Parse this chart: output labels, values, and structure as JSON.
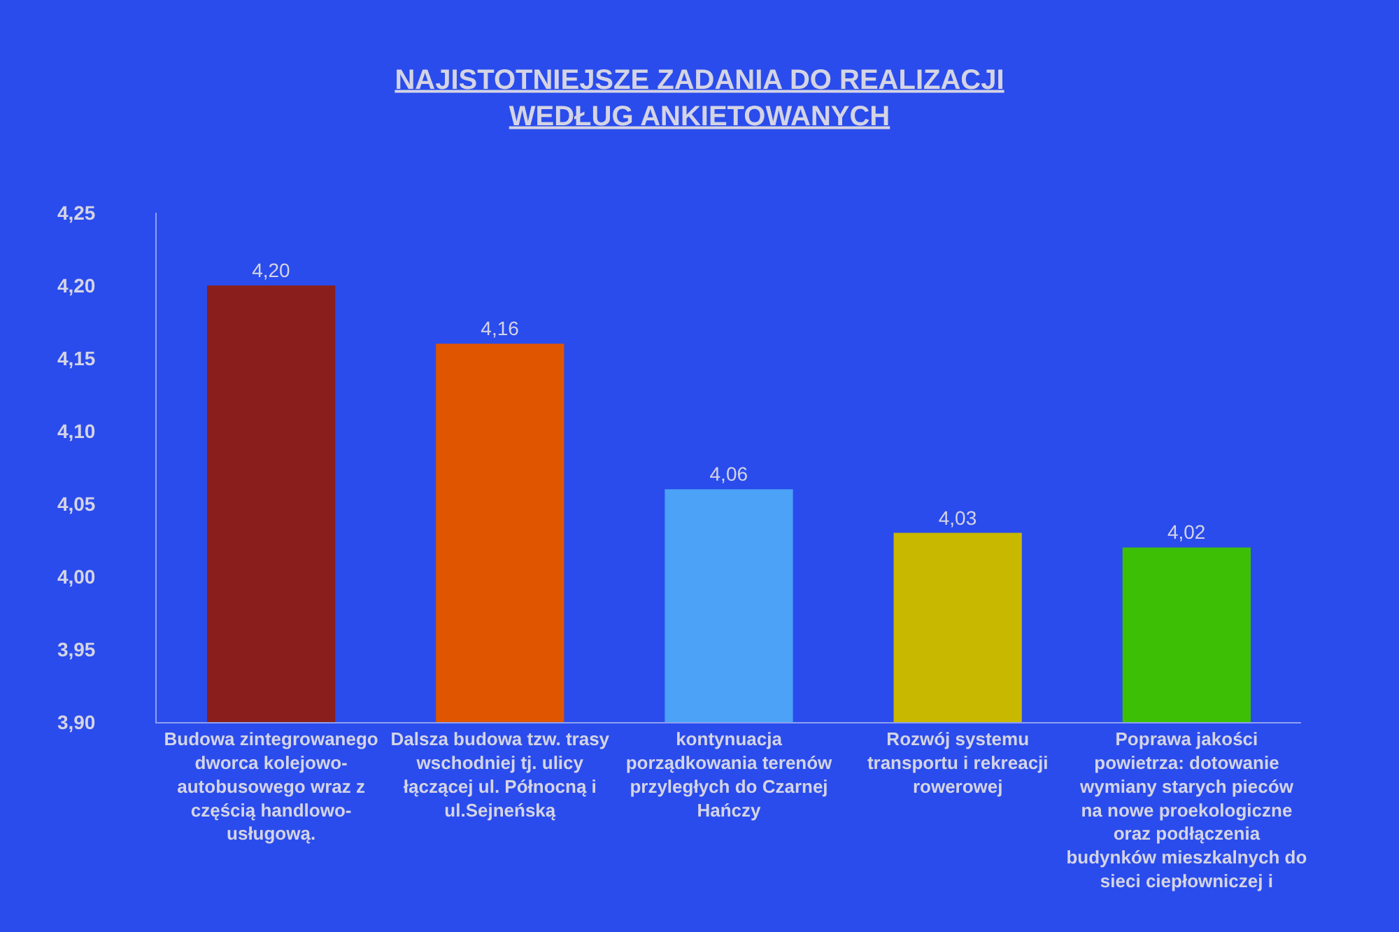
{
  "chart_data": {
    "type": "bar",
    "title": "NAJISTOTNIEJSZE ZADANIA DO REALIZACJI WEDŁUG ANKIETOWANYCH",
    "categories": [
      "Budowa zintegrowanego dworca kolejowo-autobusowego wraz z częścią handlowo-usługową.",
      "Dalsza budowa tzw. trasy wschodniej tj. ulicy łączącej ul. Północną i ul.Sejneńską",
      "kontynuacja porządkowania terenów przyległych do Czarnej Hańczy",
      "Rozwój systemu transportu i rekreacji rowerowej",
      "Poprawa jakości powietrza: dotowanie wymiany starych pieców na nowe proekologiczne oraz podłączenia budynków mieszkalnych do sieci ciepłowniczej i"
    ],
    "values": [
      4.2,
      4.16,
      4.06,
      4.03,
      4.02
    ],
    "colors": [
      "#8a1e1c",
      "#e05500",
      "#4ba2f7",
      "#c9b800",
      "#3dbf05"
    ],
    "value_labels": [
      "4,20",
      "4,16",
      "4,06",
      "4,03",
      "4,02"
    ],
    "ylim": [
      3.9,
      4.25
    ],
    "yticks": [
      {
        "value": 3.9,
        "label": "3,90"
      },
      {
        "value": 3.95,
        "label": "3,95"
      },
      {
        "value": 4.0,
        "label": "4,00"
      },
      {
        "value": 4.05,
        "label": "4,05"
      },
      {
        "value": 4.1,
        "label": "4,10"
      },
      {
        "value": 4.15,
        "label": "4,15"
      },
      {
        "value": 4.2,
        "label": "4,20"
      },
      {
        "value": 4.25,
        "label": "4,25"
      }
    ]
  }
}
